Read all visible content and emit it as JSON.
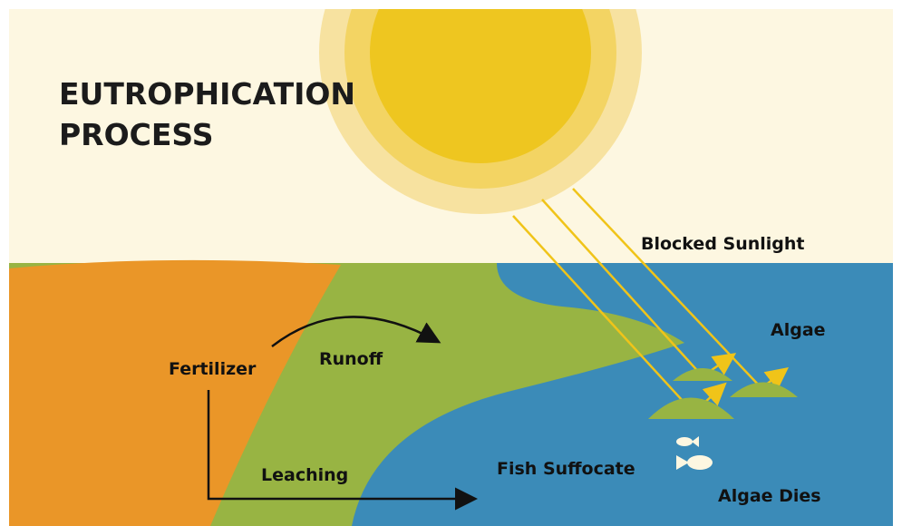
{
  "header": {
    "title_lines": [
      "EUTROPHICATION",
      "PROCESS"
    ]
  },
  "labels": {
    "blocked_sunlight": "Blocked Sunlight",
    "algae": "Algae",
    "fertilizer": "Fertilizer",
    "runoff": "Runoff",
    "leaching": "Leaching",
    "fish_suffocate": "Fish Suffocate",
    "algae_dies": "Algae Dies"
  }
}
